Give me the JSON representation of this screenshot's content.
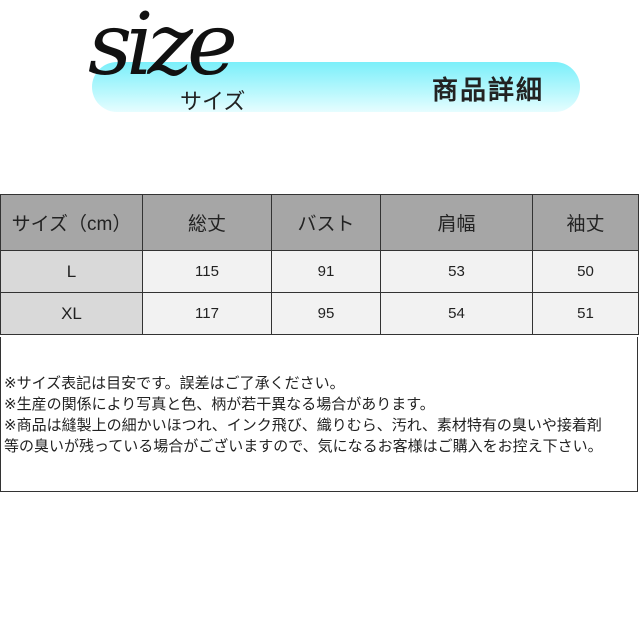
{
  "header": {
    "logo_script": "size",
    "logo_kana": "サイズ",
    "title": "商品詳細",
    "banner_color": "#7beffa"
  },
  "table": {
    "columns": [
      "サイズ（cm）",
      "総丈",
      "バスト",
      "肩幅",
      "袖丈"
    ],
    "rows": [
      [
        "L",
        "115",
        "91",
        "53",
        "50"
      ],
      [
        "XL",
        "117",
        "95",
        "54",
        "51"
      ]
    ]
  },
  "notes": [
    "※サイズ表記は目安です。誤差はご了承ください。",
    "※生産の関係により写真と色、柄が若干異なる場合があります。",
    "※商品は縫製上の細かいほつれ、インク飛び、織りむら、汚れ、素材特有の臭いや接着剤",
    "等の臭いが残っている場合がございますので、気になるお客様はご購入をお控え下さい。"
  ]
}
